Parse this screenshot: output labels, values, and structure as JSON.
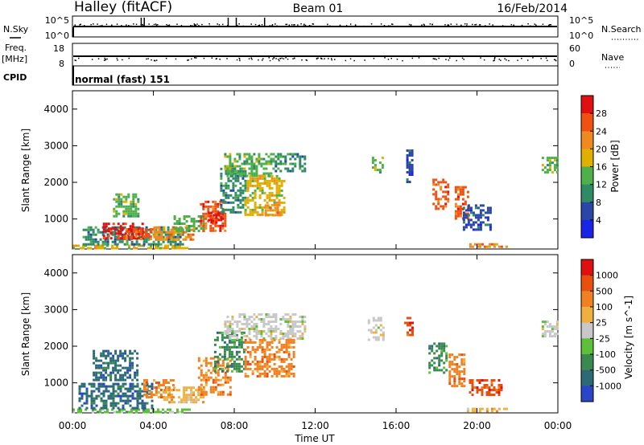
{
  "header": {
    "radar_title": "Halley (fitACF)",
    "beam": "Beam 01",
    "date": "16/Feb/2014"
  },
  "summary": {
    "nsky_label": "N.Sky",
    "nsky_ticks": [
      "10^5",
      "10^0"
    ],
    "nsearch_label": "N.Search",
    "nsearch_ticks": [
      "10^5",
      "10^0"
    ],
    "freq_label": "Freq.",
    "freq_unit": "[MHz]",
    "freq_ticks": [
      "18",
      "8"
    ],
    "nave_label": "Nave",
    "nave_ticks": [
      "60",
      "0"
    ],
    "cpid_label": "CPID",
    "cpid_value": "normal (fast) 151"
  },
  "time_axis": {
    "label": "Time UT",
    "ticks": [
      "00:00",
      "04:00",
      "08:00",
      "12:00",
      "16:00",
      "20:00",
      "00:00"
    ]
  },
  "colors": {
    "power_scale": [
      "#1a24e6",
      "#2a46a8",
      "#2f8a66",
      "#4db04a",
      "#e0b000",
      "#f08a20",
      "#f05010",
      "#e01010"
    ],
    "velocity_scale": [
      "#2a46c8",
      "#2d6a78",
      "#3a8a50",
      "#5cc03a",
      "#c8c8c8",
      "#f0b040",
      "#f08020",
      "#e85010",
      "#e01010"
    ]
  },
  "chart_data": [
    {
      "type": "heatmap",
      "title": "Power",
      "colorbar_label": "Power [dB]",
      "colorbar_ticks": [
        "28",
        "24",
        "20",
        "16",
        "12",
        "8",
        "4"
      ],
      "clim": [
        0,
        32
      ],
      "xlabel": "Time UT",
      "ylabel": "Slant Range [km]",
      "yticks": [
        "1000",
        "2000",
        "3000",
        "4000"
      ],
      "xlim_hours": [
        0,
        24
      ],
      "ylim_km": [
        180,
        4500
      ],
      "regions": [
        {
          "t0": 0.0,
          "t1": 5.8,
          "r0": 220,
          "r1": 300,
          "level": 4
        },
        {
          "t0": 0.5,
          "t1": 5.5,
          "r0": 300,
          "r1": 800,
          "level": 2
        },
        {
          "t0": 1.5,
          "t1": 3.5,
          "r0": 500,
          "r1": 900,
          "level": 7
        },
        {
          "t0": 2.5,
          "t1": 4.0,
          "r0": 450,
          "r1": 750,
          "level": 6
        },
        {
          "t0": 2.0,
          "t1": 3.2,
          "r0": 1100,
          "r1": 1700,
          "level": 3
        },
        {
          "t0": 4.0,
          "t1": 6.0,
          "r0": 450,
          "r1": 800,
          "level": 5
        },
        {
          "t0": 5.0,
          "t1": 6.5,
          "r0": 700,
          "r1": 1100,
          "level": 3
        },
        {
          "t0": 6.3,
          "t1": 7.6,
          "r0": 700,
          "r1": 1500,
          "level": 6
        },
        {
          "t0": 6.7,
          "t1": 7.3,
          "r0": 900,
          "r1": 1200,
          "level": 7
        },
        {
          "t0": 7.3,
          "t1": 8.5,
          "r0": 1200,
          "r1": 2400,
          "level": 2
        },
        {
          "t0": 7.5,
          "t1": 10.0,
          "r0": 2200,
          "r1": 2800,
          "level": 3
        },
        {
          "t0": 8.5,
          "t1": 10.5,
          "r0": 1100,
          "r1": 2200,
          "level": 4
        },
        {
          "t0": 9.5,
          "t1": 10.3,
          "r0": 1100,
          "r1": 1400,
          "level": 5
        },
        {
          "t0": 10.0,
          "t1": 11.5,
          "r0": 2300,
          "r1": 2800,
          "level": 2
        },
        {
          "t0": 14.8,
          "t1": 15.3,
          "r0": 2300,
          "r1": 2700,
          "level": 3
        },
        {
          "t0": 16.5,
          "t1": 16.8,
          "r0": 2000,
          "r1": 2900,
          "level": 1
        },
        {
          "t0": 17.8,
          "t1": 18.6,
          "r0": 1300,
          "r1": 2100,
          "level": 6
        },
        {
          "t0": 18.9,
          "t1": 19.6,
          "r0": 1000,
          "r1": 1900,
          "level": 6
        },
        {
          "t0": 19.3,
          "t1": 20.7,
          "r0": 700,
          "r1": 1400,
          "level": 1
        },
        {
          "t0": 19.5,
          "t1": 21.5,
          "r0": 220,
          "r1": 340,
          "level": 5
        },
        {
          "t0": 23.2,
          "t1": 24.0,
          "r0": 2300,
          "r1": 2700,
          "level": 3
        }
      ]
    },
    {
      "type": "heatmap",
      "title": "Velocity",
      "colorbar_label": "Velocity [m s^-1]",
      "colorbar_ticks": [
        "1000",
        "500",
        "100",
        "25",
        "-25",
        "-100",
        "-500",
        "-1000"
      ],
      "clim": [
        -1000,
        1000
      ],
      "xlabel": "Time UT",
      "ylabel": "Slant Range [km]",
      "yticks": [
        "1000",
        "2000",
        "3000",
        "4000"
      ],
      "xlim_hours": [
        0,
        24
      ],
      "ylim_km": [
        180,
        4500
      ],
      "regions": [
        {
          "t0": 0.0,
          "t1": 5.8,
          "r0": 220,
          "r1": 300,
          "level": 3
        },
        {
          "t0": 0.3,
          "t1": 4.0,
          "r0": 300,
          "r1": 1000,
          "level": 1
        },
        {
          "t0": 1.0,
          "t1": 3.2,
          "r0": 1100,
          "r1": 1900,
          "level": 1
        },
        {
          "t0": 3.5,
          "t1": 5.0,
          "r0": 600,
          "r1": 1100,
          "level": 6
        },
        {
          "t0": 4.5,
          "t1": 6.5,
          "r0": 500,
          "r1": 900,
          "level": 5
        },
        {
          "t0": 6.2,
          "t1": 7.8,
          "r0": 700,
          "r1": 1700,
          "level": 6
        },
        {
          "t0": 7.0,
          "t1": 8.5,
          "r0": 1300,
          "r1": 2400,
          "level": 2
        },
        {
          "t0": 7.5,
          "t1": 11.5,
          "r0": 2200,
          "r1": 2900,
          "level": 4
        },
        {
          "t0": 8.5,
          "t1": 11.0,
          "r0": 1200,
          "r1": 2200,
          "level": 6
        },
        {
          "t0": 14.6,
          "t1": 15.4,
          "r0": 2200,
          "r1": 2800,
          "level": 4
        },
        {
          "t0": 16.4,
          "t1": 16.8,
          "r0": 2300,
          "r1": 2800,
          "level": 7
        },
        {
          "t0": 17.6,
          "t1": 18.5,
          "r0": 1300,
          "r1": 2100,
          "level": 2
        },
        {
          "t0": 18.6,
          "t1": 19.4,
          "r0": 900,
          "r1": 1800,
          "level": 6
        },
        {
          "t0": 19.6,
          "t1": 21.2,
          "r0": 700,
          "r1": 1100,
          "level": 7
        },
        {
          "t0": 19.5,
          "t1": 21.5,
          "r0": 220,
          "r1": 320,
          "level": 5
        },
        {
          "t0": 23.2,
          "t1": 24.0,
          "r0": 2300,
          "r1": 2700,
          "level": 4
        }
      ]
    }
  ]
}
